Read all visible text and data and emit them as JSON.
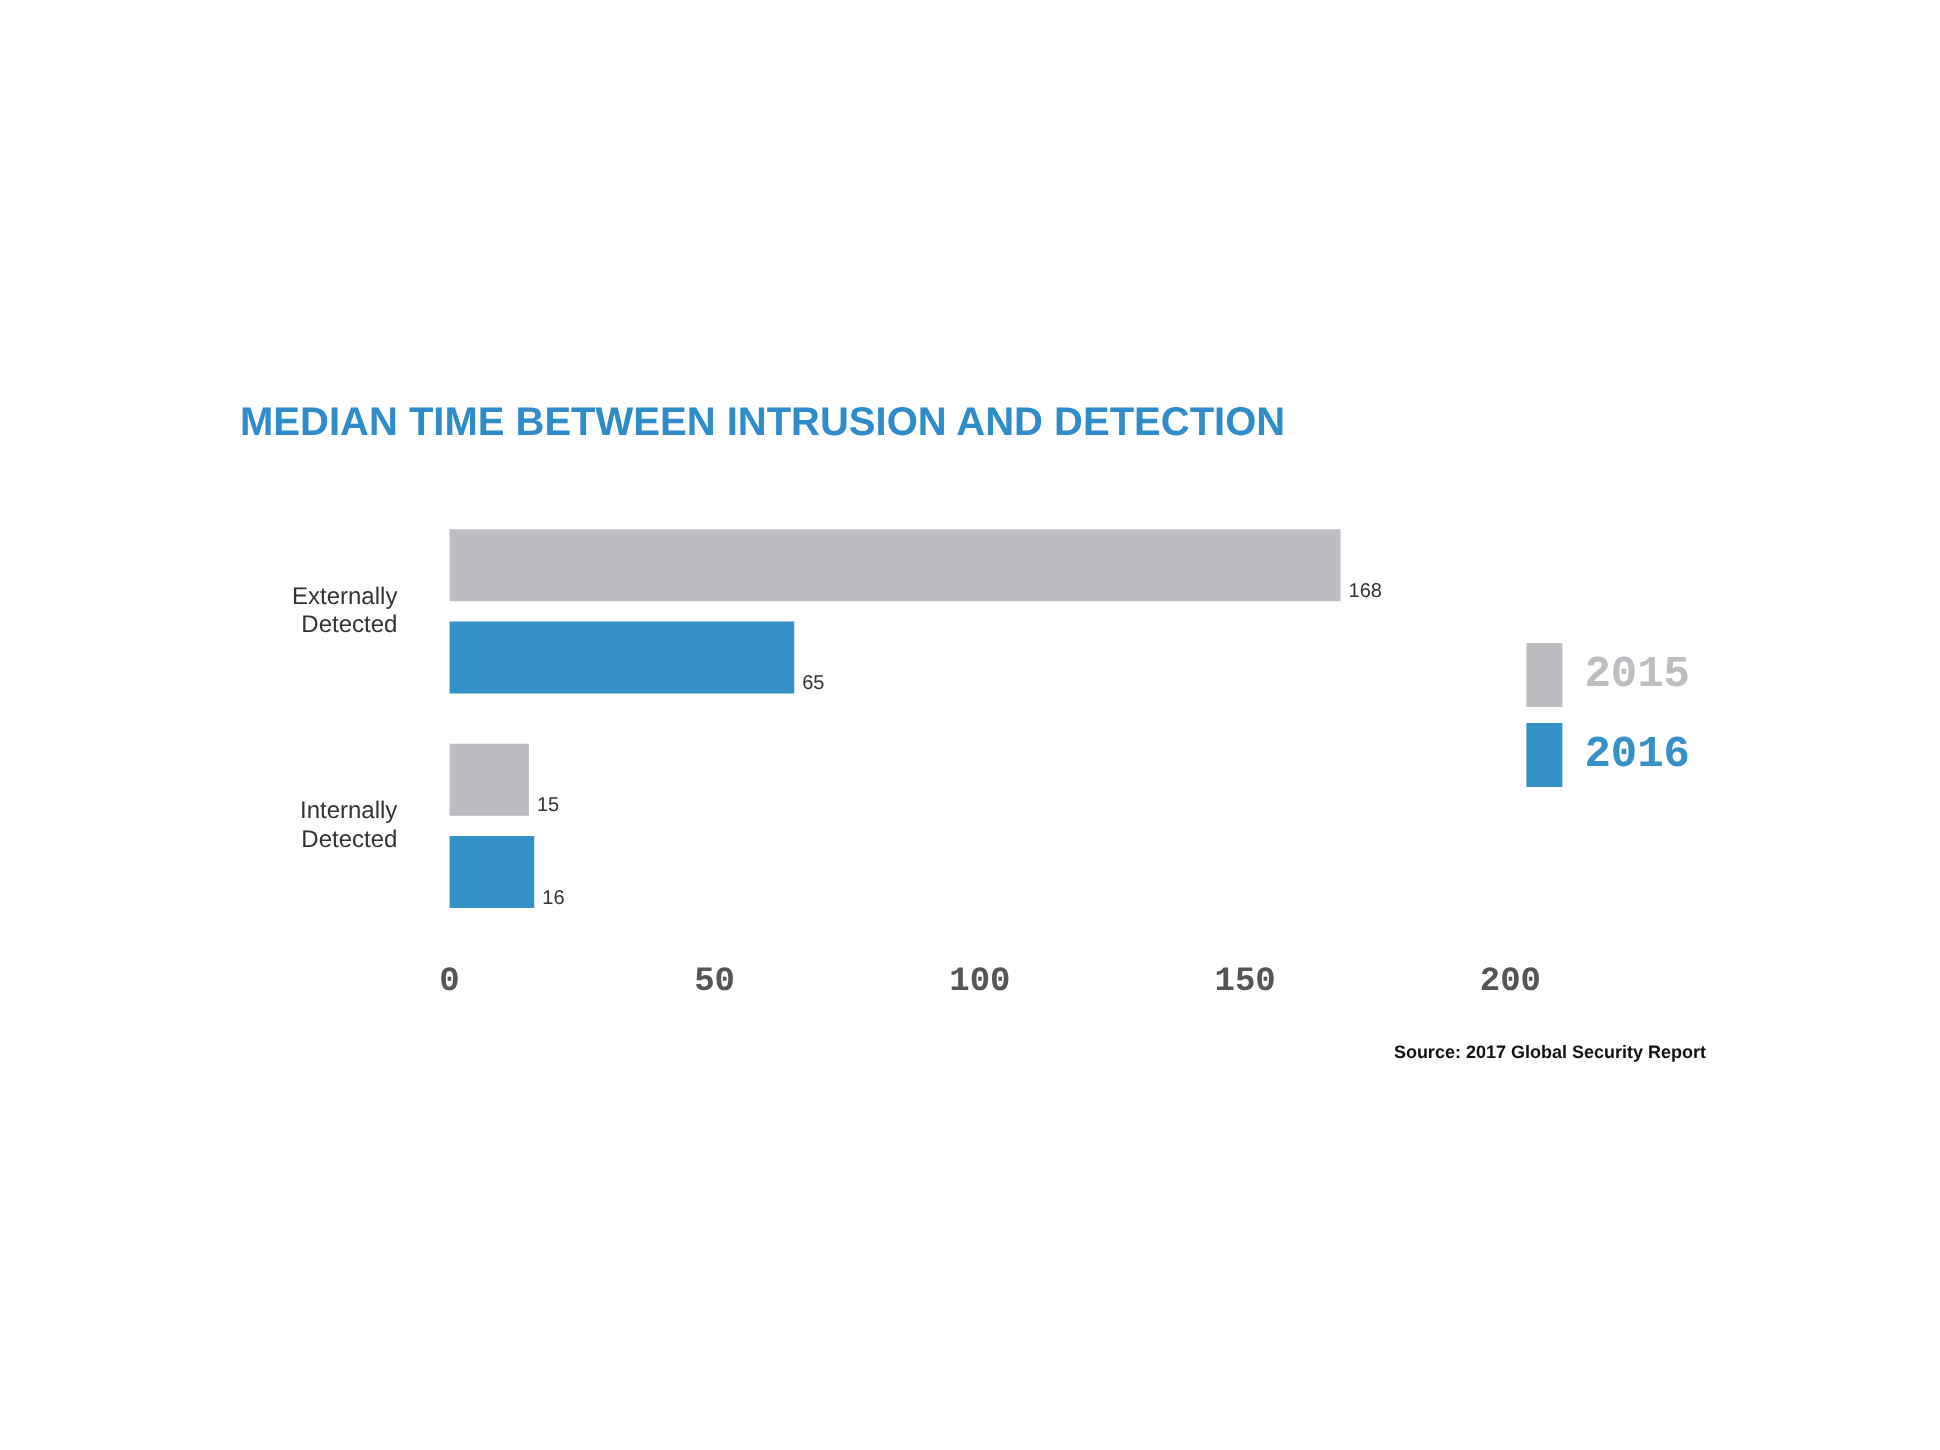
{
  "chart_data": {
    "type": "bar",
    "orientation": "horizontal",
    "title": "MEDIAN TIME BETWEEN INTRUSION AND DETECTION",
    "categories": [
      "Externally Detected",
      "Internally Detected"
    ],
    "series": [
      {
        "name": "2015",
        "color": "#bcbdc0",
        "values": [
          168,
          15
        ]
      },
      {
        "name": "2016",
        "color": "#3592c9",
        "values": [
          65,
          16
        ]
      }
    ],
    "xlim": [
      0,
      200
    ],
    "xticks": [
      0,
      50,
      100,
      150,
      200
    ],
    "grid": false,
    "legend": "right",
    "data_labels": true,
    "annotations": [
      "Source: 2017 Global Security Report"
    ]
  }
}
